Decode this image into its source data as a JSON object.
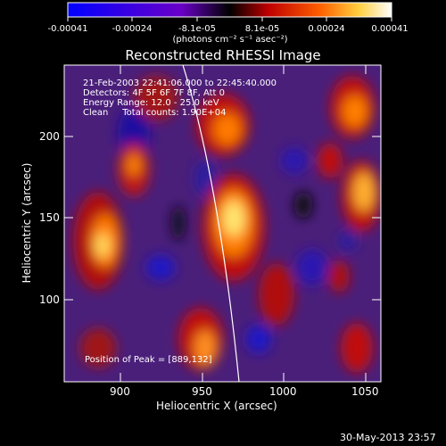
{
  "colorbar": {
    "tick_labels": [
      "-0.00041",
      "-0.00024",
      "-8.1e-05",
      "8.1e-05",
      "0.00024",
      "0.00041"
    ],
    "unit": "(photons cm⁻² s⁻¹ asec⁻²)",
    "range": [
      -0.00041,
      0.00041
    ]
  },
  "title": "Reconstructed RHESSI Image",
  "info": {
    "line1": "21-Feb-2003 22:41:06.000 to 22:45:40.000",
    "line2": "Detectors: 4F 5F 6F 7F 8F, Att 0",
    "line3": "Energy Range: 12.0 - 25.0 keV",
    "line4": "Clean     Total counts: 1.90E+04"
  },
  "peak_label": "Position of Peak = [889,132]",
  "x_axis": {
    "label": "Heliocentric X (arcsec)",
    "ticks": [
      "900",
      "950",
      "1000",
      "1050"
    ],
    "tick_values": [
      900,
      950,
      1000,
      1050
    ],
    "range": [
      866,
      1060
    ]
  },
  "y_axis": {
    "label": "Heliocentric Y (arcsec)",
    "ticks": [
      "100",
      "150",
      "200"
    ],
    "tick_values": [
      100,
      150,
      200
    ],
    "range": [
      46,
      240
    ]
  },
  "footer_date": "30-May-2013 23:57",
  "colors": {
    "background": "#000000",
    "axis": "#ffffff",
    "limb": "#ffffff"
  }
}
